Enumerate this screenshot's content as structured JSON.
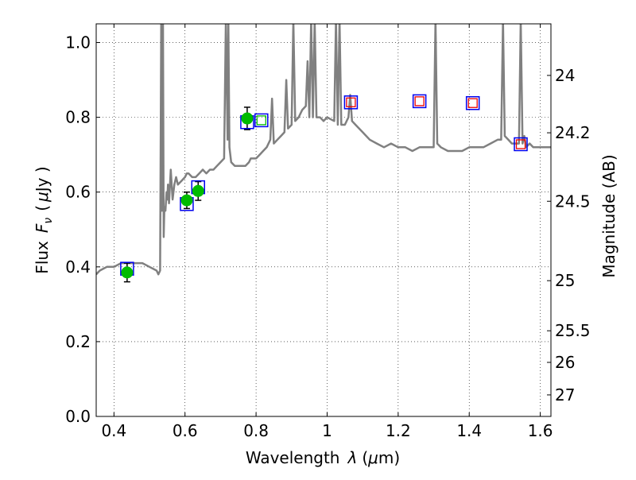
{
  "chart_data": {
    "type": "scatter",
    "xlabel": "Wavelength",
    "xlabel_symbol": "λ",
    "xlabel_unit_open": "(",
    "xlabel_unit_mu": "μ",
    "xlabel_unit_rest": "m)",
    "ylabel": "Flux",
    "ylabel_symbol": "F",
    "ylabel_symbol_sub": "ν",
    "ylabel_unit_open": "(",
    "ylabel_unit_mu": "μ",
    "ylabel_unit_rest": "Jy )",
    "y2label": "Magnitude (AB)",
    "xlim": [
      0.35,
      1.63
    ],
    "ylim": [
      0.0,
      1.05
    ],
    "grid": true,
    "x_ticks": [
      {
        "value": 0.4,
        "label": "0.4"
      },
      {
        "value": 0.6,
        "label": "0.6"
      },
      {
        "value": 0.8,
        "label": "0.8"
      },
      {
        "value": 1.0,
        "label": "1"
      },
      {
        "value": 1.2,
        "label": "1.2"
      },
      {
        "value": 1.4,
        "label": "1.4"
      },
      {
        "value": 1.6,
        "label": "1.6"
      }
    ],
    "y_ticks": [
      {
        "value": 0.0,
        "label": "0.0"
      },
      {
        "value": 0.2,
        "label": "0.2"
      },
      {
        "value": 0.4,
        "label": "0.4"
      },
      {
        "value": 0.6,
        "label": "0.6"
      },
      {
        "value": 0.8,
        "label": "0.8"
      },
      {
        "value": 1.0,
        "label": "1.0"
      }
    ],
    "y2_ticks": [
      {
        "mag": 24,
        "label": "24"
      },
      {
        "mag": 24.2,
        "label": "24.2"
      },
      {
        "mag": 24.5,
        "label": "24.5"
      },
      {
        "mag": 25,
        "label": "25"
      },
      {
        "mag": 25.5,
        "label": "25.5"
      },
      {
        "mag": 26,
        "label": "26"
      },
      {
        "mag": 27,
        "label": "27"
      }
    ],
    "colors": {
      "model": "#808080",
      "observed": "#00bb00",
      "model_band": "#0000ee",
      "upper_band": "#ee0000",
      "observed_band_alt": "#00bb00",
      "errorbar": "#000000"
    },
    "series": [
      {
        "type": "line",
        "x": [
          0.35,
          0.36,
          0.38,
          0.4,
          0.42,
          0.44,
          0.46,
          0.48,
          0.5,
          0.52,
          0.525,
          0.53,
          0.533,
          0.535,
          0.538,
          0.54,
          0.542,
          0.545,
          0.548,
          0.55,
          0.552,
          0.555,
          0.56,
          0.565,
          0.57,
          0.575,
          0.58,
          0.59,
          0.6,
          0.605,
          0.61,
          0.62,
          0.63,
          0.64,
          0.65,
          0.66,
          0.67,
          0.68,
          0.69,
          0.7,
          0.71,
          0.715,
          0.72,
          0.722,
          0.725,
          0.73,
          0.74,
          0.75,
          0.76,
          0.77,
          0.78,
          0.785,
          0.79,
          0.8,
          0.81,
          0.82,
          0.83,
          0.84,
          0.845,
          0.85,
          0.86,
          0.87,
          0.88,
          0.885,
          0.89,
          0.9,
          0.905,
          0.91,
          0.92,
          0.93,
          0.94,
          0.945,
          0.95,
          0.955,
          0.96,
          0.965,
          0.97,
          0.98,
          0.99,
          1.0,
          1.02,
          1.025,
          1.03,
          1.035,
          1.04,
          1.05,
          1.06,
          1.065,
          1.07,
          1.08,
          1.1,
          1.12,
          1.14,
          1.16,
          1.18,
          1.2,
          1.22,
          1.24,
          1.26,
          1.28,
          1.3,
          1.305,
          1.31,
          1.32,
          1.34,
          1.36,
          1.38,
          1.4,
          1.42,
          1.44,
          1.46,
          1.48,
          1.49,
          1.495,
          1.5,
          1.51,
          1.52,
          1.53,
          1.535,
          1.54,
          1.545,
          1.55,
          1.555,
          1.56,
          1.57,
          1.58,
          1.6,
          1.62,
          1.63
        ],
        "y": [
          0.38,
          0.39,
          0.4,
          0.4,
          0.41,
          0.41,
          0.41,
          0.41,
          0.4,
          0.39,
          0.38,
          0.39,
          1.06,
          0.55,
          1.06,
          0.48,
          0.56,
          0.55,
          0.6,
          0.58,
          0.62,
          0.57,
          0.66,
          0.58,
          0.62,
          0.64,
          0.62,
          0.63,
          0.64,
          0.65,
          0.65,
          0.64,
          0.64,
          0.65,
          0.66,
          0.65,
          0.66,
          0.66,
          0.67,
          0.68,
          0.69,
          1.06,
          0.74,
          1.06,
          0.72,
          0.68,
          0.67,
          0.67,
          0.67,
          0.67,
          0.68,
          0.69,
          0.69,
          0.69,
          0.7,
          0.71,
          0.72,
          0.74,
          0.85,
          0.73,
          0.74,
          0.75,
          0.76,
          0.9,
          0.77,
          0.78,
          1.06,
          0.79,
          0.8,
          0.82,
          0.83,
          0.95,
          0.8,
          1.06,
          0.8,
          1.06,
          0.8,
          0.8,
          0.79,
          0.8,
          0.79,
          1.06,
          0.78,
          1.06,
          0.78,
          0.78,
          0.8,
          0.86,
          0.79,
          0.78,
          0.76,
          0.74,
          0.73,
          0.72,
          0.73,
          0.72,
          0.72,
          0.71,
          0.72,
          0.72,
          0.72,
          1.06,
          0.73,
          0.72,
          0.71,
          0.71,
          0.71,
          0.72,
          0.72,
          0.72,
          0.73,
          0.74,
          0.74,
          1.06,
          0.75,
          0.74,
          0.73,
          0.73,
          0.73,
          0.73,
          1.06,
          0.73,
          0.75,
          0.72,
          0.73,
          0.72,
          0.72,
          0.72,
          0.72
        ]
      },
      {
        "type": "errorbar",
        "marker": "circle",
        "x": [
          0.437,
          0.605,
          0.637,
          0.775
        ],
        "y": [
          0.385,
          0.578,
          0.603,
          0.797
        ],
        "yerr": [
          0.025,
          0.022,
          0.025,
          0.03
        ]
      },
      {
        "type": "scatter",
        "marker": "square",
        "x": [
          0.437,
          0.605,
          0.637,
          0.775,
          0.815,
          1.067,
          1.26,
          1.41,
          1.545
        ],
        "y": [
          0.395,
          0.568,
          0.613,
          0.787,
          0.792,
          0.84,
          0.843,
          0.838,
          0.728
        ]
      },
      {
        "type": "scatter",
        "marker": "square-small",
        "x": [
          0.815,
          1.067,
          1.26,
          1.41,
          1.545
        ],
        "y": [
          0.792,
          0.84,
          0.843,
          0.838,
          0.728
        ]
      }
    ]
  }
}
